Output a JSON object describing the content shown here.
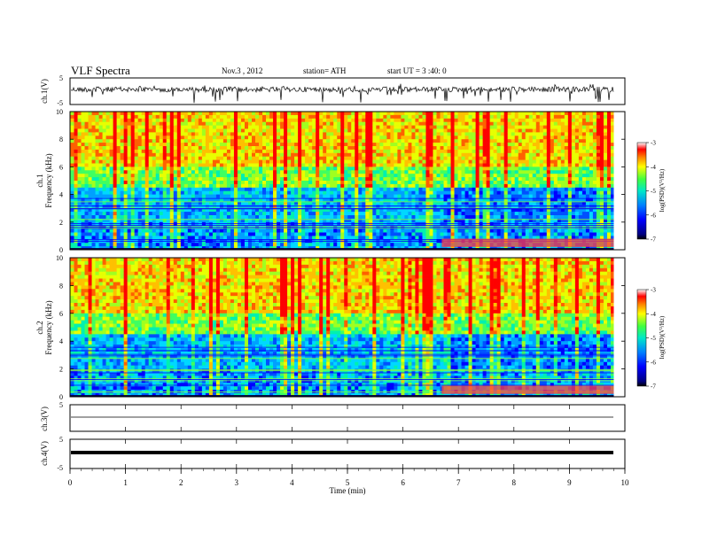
{
  "header": {
    "title": "VLF  Spectra",
    "date": "Nov.3  , 2012",
    "station": "station= ATH",
    "start": "start  UT  =   3 :40: 0"
  },
  "chart_data": [
    {
      "type": "line",
      "name": "ch1-waveform",
      "ylabel": "ch.1(V)",
      "ylim": [
        -5,
        5
      ],
      "yticks": [
        "5",
        "-5"
      ],
      "xlim": [
        0,
        10
      ],
      "series_color": "#000000"
    },
    {
      "type": "heatmap",
      "name": "ch1-spectrogram",
      "ylabel_channel": "ch.1",
      "ylabel": "Frequency  (kHz)",
      "ylim": [
        0,
        10
      ],
      "yticks": [
        "0",
        "2",
        "4",
        "6",
        "8",
        "10"
      ],
      "xlim": [
        0,
        9.8
      ],
      "colorbar": {
        "label": "log(PSD)(V²/Hz)",
        "range": [
          -7,
          -3
        ],
        "ticks": [
          "-3",
          "-4",
          "-5",
          "-6",
          "-7"
        ]
      }
    },
    {
      "type": "heatmap",
      "name": "ch2-spectrogram",
      "ylabel_channel": "ch.2",
      "ylabel": "Frequency  (kHz)",
      "ylim": [
        0,
        10
      ],
      "yticks": [
        "0",
        "2",
        "4",
        "6",
        "8",
        "10"
      ],
      "xlim": [
        0,
        9.8
      ],
      "colorbar": {
        "label": "log(PSD)(V²/Hz)",
        "range": [
          -7,
          -3
        ],
        "ticks": [
          "-3",
          "-4",
          "-5",
          "-6",
          "-7"
        ]
      }
    },
    {
      "type": "line",
      "name": "ch3-waveform",
      "ylabel": "ch.3(V)",
      "ylim": [
        -5,
        5
      ],
      "yticks": [
        "5"
      ],
      "xlim": [
        0,
        10
      ]
    },
    {
      "type": "line",
      "name": "ch4-waveform",
      "ylabel": "ch.4(V)",
      "ylim": [
        -5,
        5
      ],
      "yticks": [
        "5",
        "-5"
      ],
      "xlim": [
        0,
        10
      ],
      "xlabel": "Time  (min)",
      "xticks": [
        "0",
        "1",
        "2",
        "3",
        "4",
        "5",
        "6",
        "7",
        "8",
        "9",
        "10"
      ]
    }
  ]
}
